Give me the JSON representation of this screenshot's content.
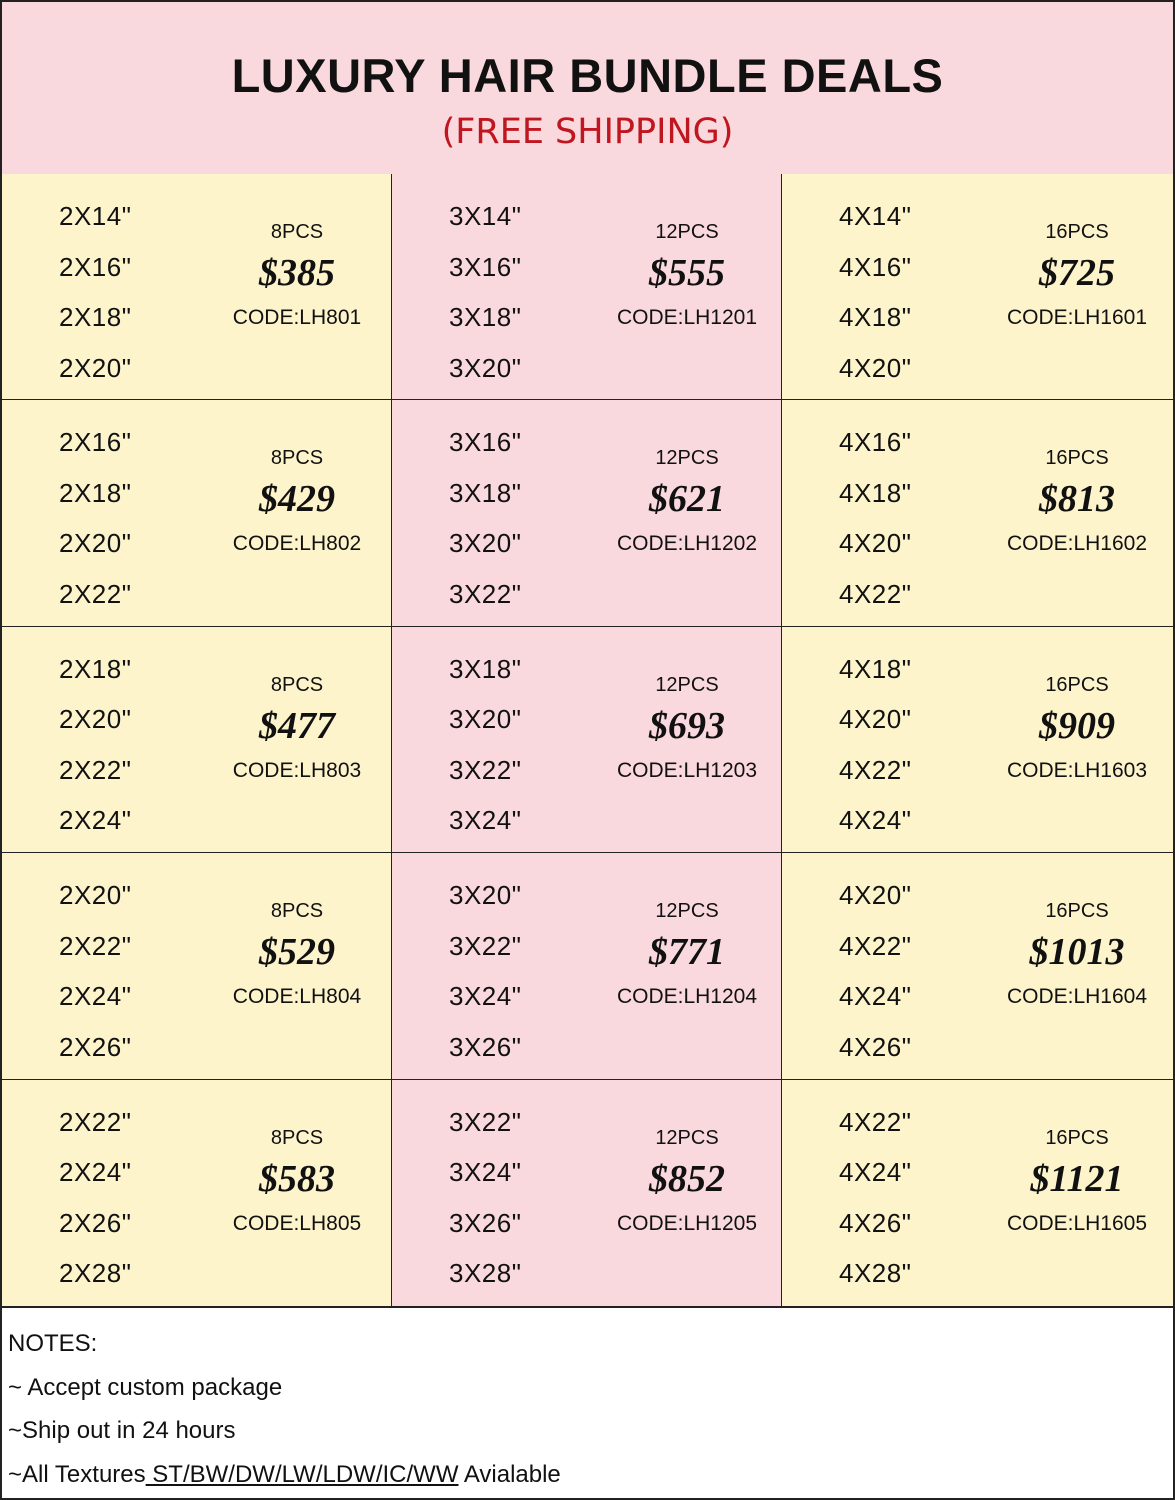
{
  "header": {
    "title": "LUXURY HAIR BUNDLE DEALS",
    "subtitle": "(FREE SHIPPING)"
  },
  "colors": {
    "header_bg": "#fad9de",
    "subtitle": "#c0161f",
    "yellow_cell": "#fdf4cc",
    "pink_cell": "#fad9de"
  },
  "rows": [
    [
      {
        "lengths": [
          "2X14\"",
          "2X16\"",
          "2X18\"",
          "2X20\""
        ],
        "pcs": "8PCS",
        "price": "$385",
        "code": "CODE:LH801"
      },
      {
        "lengths": [
          "3X14\"",
          "3X16\"",
          "3X18\"",
          "3X20\""
        ],
        "pcs": "12PCS",
        "price": "$555",
        "code": "CODE:LH1201"
      },
      {
        "lengths": [
          "4X14\"",
          "4X16\"",
          "4X18\"",
          "4X20\""
        ],
        "pcs": "16PCS",
        "price": "$725",
        "code": "CODE:LH1601"
      }
    ],
    [
      {
        "lengths": [
          "2X16\"",
          "2X18\"",
          "2X20\"",
          "2X22\""
        ],
        "pcs": "8PCS",
        "price": "$429",
        "code": "CODE:LH802"
      },
      {
        "lengths": [
          "3X16\"",
          "3X18\"",
          "3X20\"",
          "3X22\""
        ],
        "pcs": "12PCS",
        "price": "$621",
        "code": "CODE:LH1202"
      },
      {
        "lengths": [
          "4X16\"",
          "4X18\"",
          "4X20\"",
          "4X22\""
        ],
        "pcs": "16PCS",
        "price": "$813",
        "code": "CODE:LH1602"
      }
    ],
    [
      {
        "lengths": [
          "2X18\"",
          "2X20\"",
          "2X22\"",
          "2X24\""
        ],
        "pcs": "8PCS",
        "price": "$477",
        "code": "CODE:LH803"
      },
      {
        "lengths": [
          "3X18\"",
          "3X20\"",
          "3X22\"",
          "3X24\""
        ],
        "pcs": "12PCS",
        "price": "$693",
        "code": "CODE:LH1203"
      },
      {
        "lengths": [
          "4X18\"",
          "4X20\"",
          "4X22\"",
          "4X24\""
        ],
        "pcs": "16PCS",
        "price": "$909",
        "code": "CODE:LH1603"
      }
    ],
    [
      {
        "lengths": [
          "2X20\"",
          "2X22\"",
          "2X24\"",
          "2X26\""
        ],
        "pcs": "8PCS",
        "price": "$529",
        "code": "CODE:LH804"
      },
      {
        "lengths": [
          "3X20\"",
          "3X22\"",
          "3X24\"",
          "3X26\""
        ],
        "pcs": "12PCS",
        "price": "$771",
        "code": "CODE:LH1204"
      },
      {
        "lengths": [
          "4X20\"",
          "4X22\"",
          "4X24\"",
          "4X26\""
        ],
        "pcs": "16PCS",
        "price": "$1013",
        "code": "CODE:LH1604"
      }
    ],
    [
      {
        "lengths": [
          "2X22\"",
          "2X24\"",
          "2X26\"",
          "2X28\""
        ],
        "pcs": "8PCS",
        "price": "$583",
        "code": "CODE:LH805"
      },
      {
        "lengths": [
          "3X22\"",
          "3X24\"",
          "3X26\"",
          "3X28\""
        ],
        "pcs": "12PCS",
        "price": "$852",
        "code": "CODE:LH1205"
      },
      {
        "lengths": [
          "4X22\"",
          "4X24\"",
          "4X26\"",
          "4X28\""
        ],
        "pcs": "16PCS",
        "price": "$1121",
        "code": "CODE:LH1605"
      }
    ]
  ],
  "notes": {
    "heading": "NOTES:",
    "line1": "~ Accept custom package",
    "line2": "~Ship out in 24 hours",
    "line3_prefix": "~All Textures",
    "line3_underlined": " ST/BW/DW/LW/LDW/IC/WW",
    "line3_suffix": " Avialable"
  }
}
